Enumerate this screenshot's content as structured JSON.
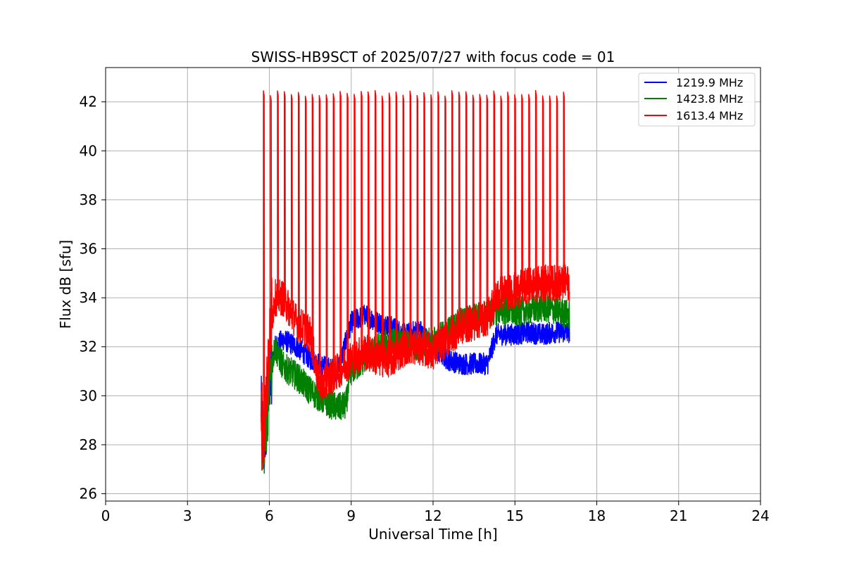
{
  "chart_data": {
    "type": "line",
    "title": "SWISS-HB9SCT of 2025/07/27 with focus code = 01",
    "xlabel": "Universal Time [h]",
    "ylabel": "Flux dB [sfu]",
    "xlim": [
      0,
      24
    ],
    "ylim": [
      25.7,
      43.4
    ],
    "xticks": [
      0,
      3,
      6,
      9,
      12,
      15,
      18,
      21,
      24
    ],
    "yticks": [
      26,
      28,
      30,
      32,
      34,
      36,
      38,
      40,
      42
    ],
    "grid": true,
    "legend_position": "top-right",
    "series": [
      {
        "name": "1219.9 MHz",
        "color": "#0000ff",
        "x": [
          5.7,
          5.8,
          6.0,
          6.2,
          6.5,
          7.0,
          7.5,
          8.0,
          8.5,
          9.0,
          9.5,
          10.0,
          10.5,
          11.0,
          11.5,
          12.0,
          12.5,
          13.0,
          13.5,
          14.0,
          14.3,
          14.5,
          15.0,
          15.5,
          16.0,
          16.5,
          17.0
        ],
        "y": [
          29.5,
          27.8,
          30.5,
          32.0,
          32.3,
          32.0,
          31.5,
          31.2,
          31.0,
          33.0,
          33.3,
          33.0,
          32.8,
          32.5,
          32.7,
          32.0,
          31.5,
          31.3,
          31.3,
          31.3,
          32.5,
          32.5,
          32.5,
          32.6,
          32.5,
          32.6,
          32.6
        ],
        "amplitude": 0.45
      },
      {
        "name": "1423.8 MHz",
        "color": "#008000",
        "x": [
          5.7,
          5.8,
          6.0,
          6.2,
          6.5,
          7.0,
          7.5,
          8.0,
          8.5,
          8.8,
          9.0,
          9.5,
          10.0,
          10.5,
          11.0,
          11.5,
          12.0,
          12.5,
          13.0,
          13.5,
          14.0,
          14.3,
          14.5,
          15.0,
          15.5,
          16.0,
          16.5,
          17.0
        ],
        "y": [
          29.0,
          28.0,
          30.5,
          32.0,
          31.2,
          30.8,
          30.2,
          29.8,
          29.5,
          29.6,
          31.0,
          31.5,
          32.0,
          32.2,
          32.0,
          32.1,
          32.2,
          32.6,
          33.0,
          33.2,
          33.3,
          33.5,
          33.5,
          33.4,
          33.5,
          33.6,
          33.5,
          33.3
        ],
        "amplitude": 0.6
      },
      {
        "name": "1613.4 MHz",
        "color": "#ff0000",
        "x": [
          5.7,
          5.8,
          6.0,
          6.2,
          6.5,
          7.0,
          7.5,
          7.8,
          8.0,
          8.5,
          9.0,
          9.5,
          10.0,
          10.5,
          11.0,
          11.5,
          12.0,
          12.5,
          13.0,
          13.5,
          14.0,
          14.3,
          14.5,
          15.0,
          15.5,
          16.0,
          16.5,
          17.0
        ],
        "y": [
          29.0,
          28.0,
          32.5,
          34.0,
          34.0,
          33.0,
          32.5,
          30.5,
          30.5,
          31.0,
          31.5,
          31.8,
          31.5,
          31.5,
          32.0,
          32.0,
          31.8,
          32.3,
          32.8,
          33.0,
          33.2,
          34.0,
          34.2,
          34.3,
          34.5,
          34.6,
          34.6,
          34.6
        ],
        "amplitude": 0.75,
        "spikes": {
          "start": 5.78,
          "end": 16.78,
          "count": 44,
          "peak": 42.35
        }
      }
    ]
  }
}
